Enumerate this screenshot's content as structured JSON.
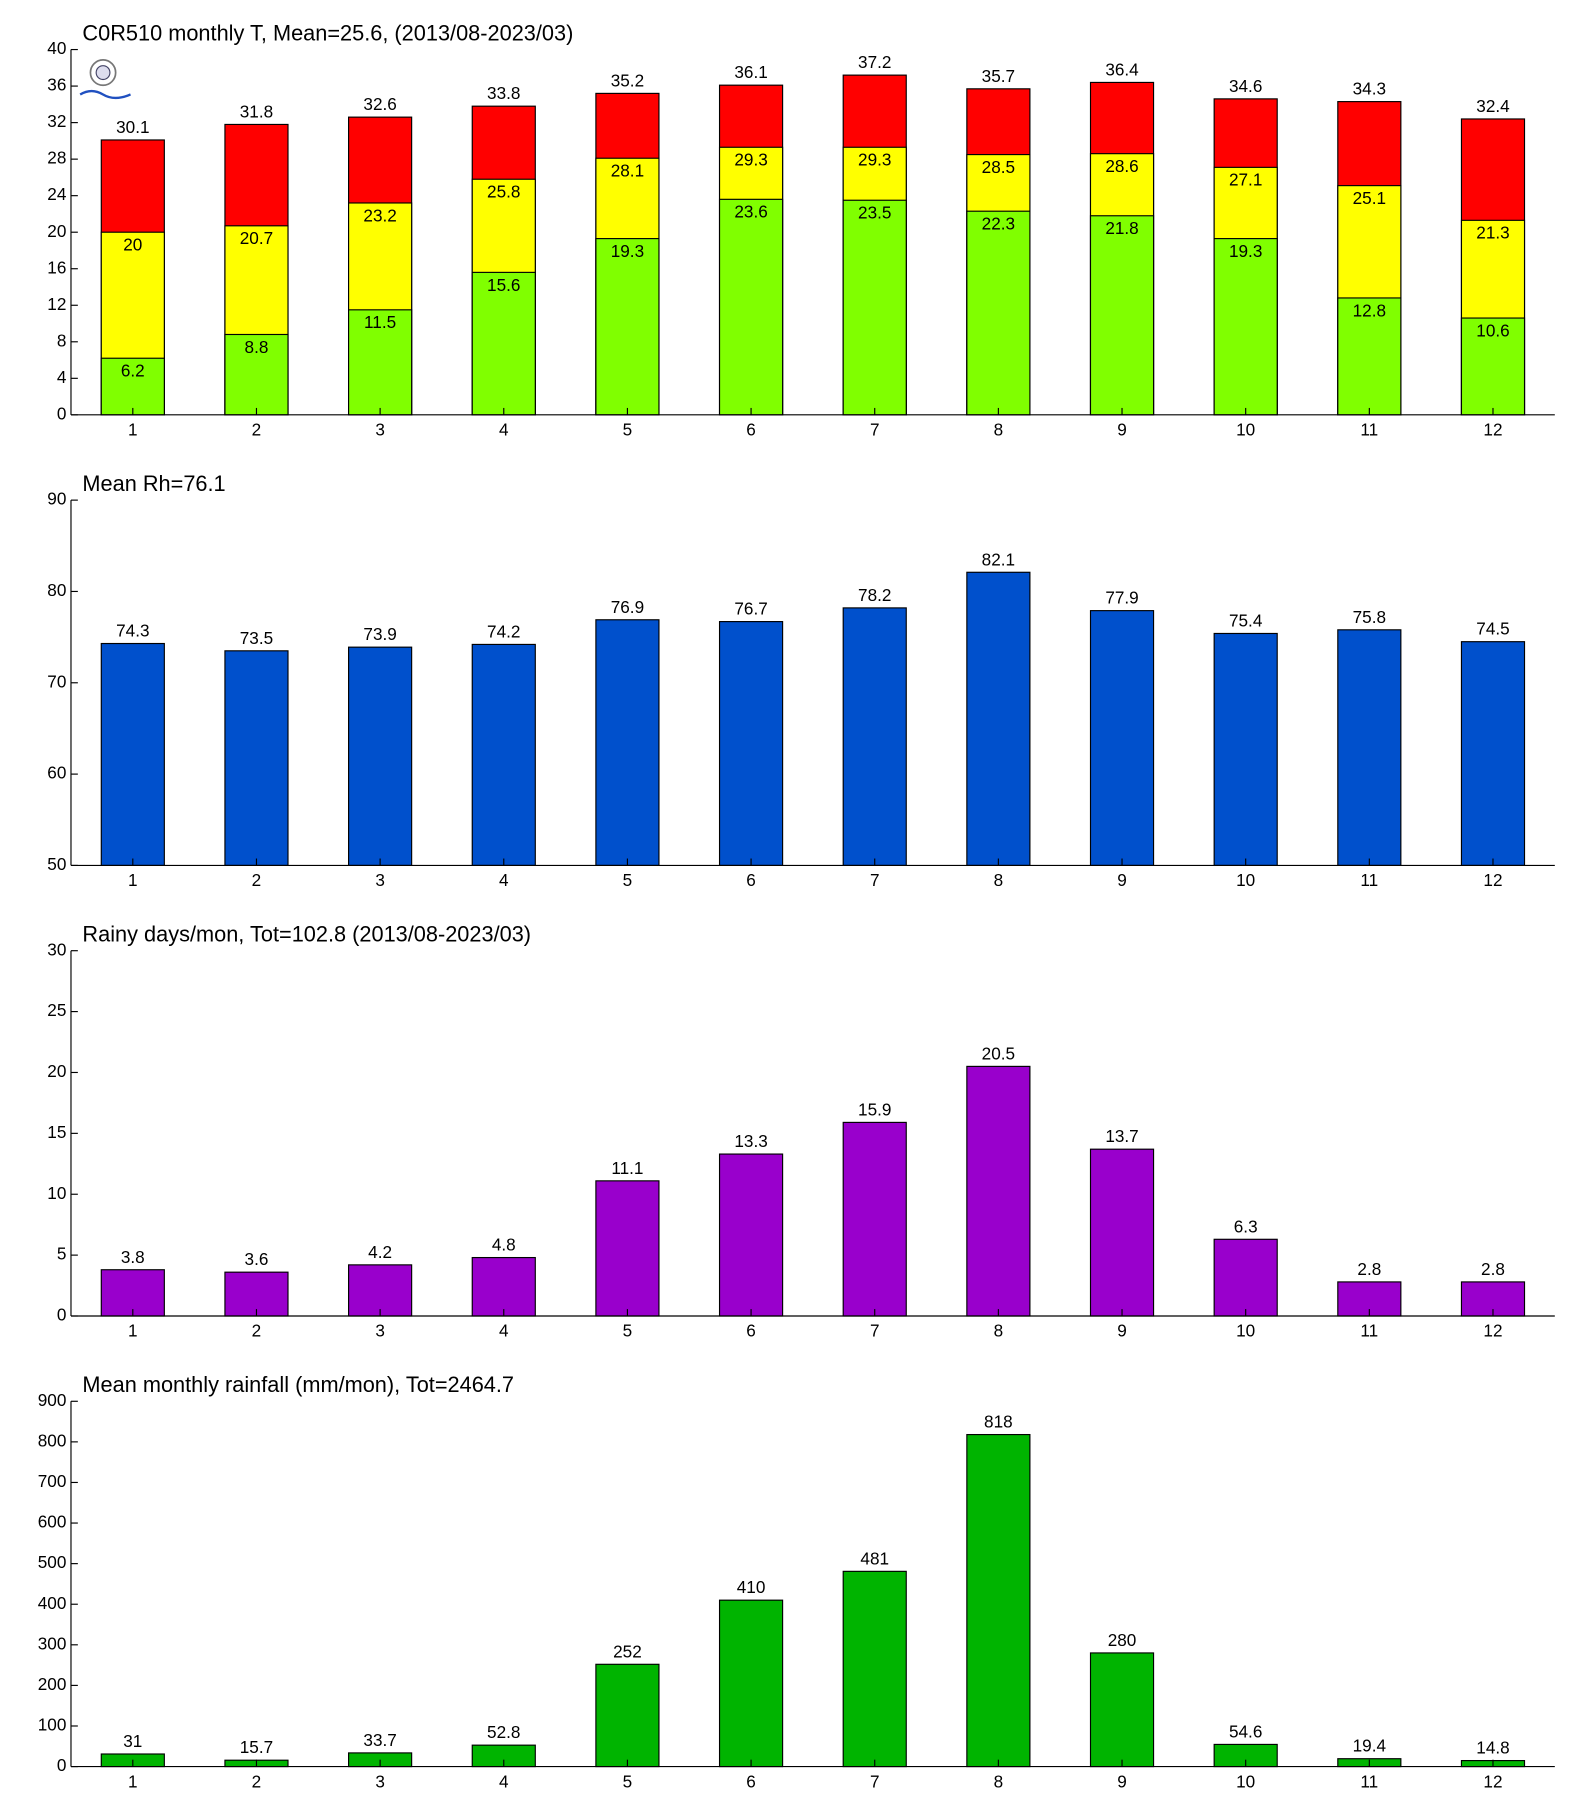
{
  "chart_data": [
    {
      "type": "bar",
      "title": "C0R510 monthly T, Mean=25.6, (2013/08-2023/03)",
      "categories": [
        1,
        2,
        3,
        4,
        5,
        6,
        7,
        8,
        9,
        10,
        11,
        12
      ],
      "series": [
        {
          "color": "#ff0000",
          "values": [
            30.1,
            31.8,
            32.6,
            33.8,
            35.2,
            36.1,
            37.2,
            35.7,
            36.4,
            34.6,
            34.3,
            32.4
          ]
        },
        {
          "color": "#ffff00",
          "values": [
            20,
            20.7,
            23.2,
            25.8,
            28.1,
            29.3,
            29.3,
            28.5,
            28.6,
            27.1,
            25.1,
            21.3
          ]
        },
        {
          "color": "#80ff00",
          "values": [
            6.2,
            8.8,
            11.5,
            15.6,
            19.3,
            23.6,
            23.5,
            22.3,
            21.8,
            19.3,
            12.8,
            10.6
          ]
        }
      ],
      "ylim": [
        0,
        40
      ],
      "yticks": [
        0,
        4,
        8,
        12,
        16,
        20,
        24,
        28,
        32,
        36,
        40
      ]
    },
    {
      "type": "bar",
      "title": "Mean Rh=76.1",
      "categories": [
        1,
        2,
        3,
        4,
        5,
        6,
        7,
        8,
        9,
        10,
        11,
        12
      ],
      "series": [
        {
          "color": "#0050cc",
          "values": [
            74.3,
            73.5,
            73.9,
            74.2,
            76.9,
            76.7,
            78.2,
            82.1,
            77.9,
            75.4,
            75.8,
            74.5
          ]
        }
      ],
      "ylim": [
        50,
        90
      ],
      "yticks": [
        50,
        60,
        70,
        80,
        90
      ]
    },
    {
      "type": "bar",
      "title": "Rainy days/mon, Tot=102.8 (2013/08-2023/03)",
      "categories": [
        1,
        2,
        3,
        4,
        5,
        6,
        7,
        8,
        9,
        10,
        11,
        12
      ],
      "series": [
        {
          "color": "#9900cc",
          "values": [
            3.8,
            3.6,
            4.2,
            4.8,
            11.1,
            13.3,
            15.9,
            20.5,
            13.7,
            6.3,
            2.8,
            2.8
          ]
        }
      ],
      "ylim": [
        0,
        30
      ],
      "yticks": [
        0,
        5,
        10,
        15,
        20,
        25,
        30
      ]
    },
    {
      "type": "bar",
      "title": "Mean monthly rainfall (mm/mon), Tot=2464.7",
      "categories": [
        1,
        2,
        3,
        4,
        5,
        6,
        7,
        8,
        9,
        10,
        11,
        12
      ],
      "series": [
        {
          "color": "#00b400",
          "values": [
            31,
            15.7,
            33.7,
            52.8,
            252,
            410,
            481,
            818,
            280,
            54.6,
            19.4,
            14.8
          ]
        }
      ],
      "ylim": [
        0,
        900
      ],
      "yticks": [
        0,
        100,
        200,
        300,
        400,
        500,
        600,
        700,
        800,
        900
      ]
    }
  ]
}
